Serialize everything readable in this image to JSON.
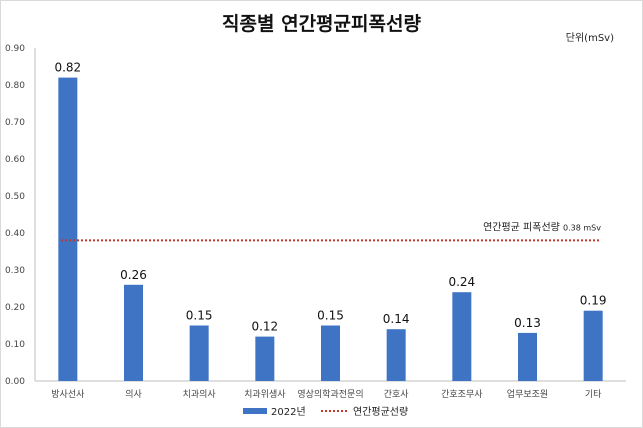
{
  "chart_data": {
    "type": "bar",
    "title": "직종별 연간평균피폭선량",
    "unit_label": "단위(mSv)",
    "categories": [
      "방사선사",
      "의사",
      "치과의사",
      "치과위생사",
      "영상의학과전문의",
      "간호사",
      "간호조무사",
      "업무보조원",
      "기타"
    ],
    "series": [
      {
        "name": "2022년",
        "values": [
          0.82,
          0.26,
          0.15,
          0.12,
          0.15,
          0.14,
          0.24,
          0.13,
          0.19
        ],
        "color": "#3f74c4"
      }
    ],
    "value_labels": [
      "0.82",
      "0.26",
      "0.15",
      "0.12",
      "0.15",
      "0.14",
      "0.24",
      "0.13",
      "0.19"
    ],
    "reference_line": {
      "name": "연간평균선량",
      "value": 0.38,
      "color": "#c0392b",
      "label": "연간평균 피폭선량",
      "label_value": "0.38 mSv"
    },
    "ylim": [
      0,
      0.9
    ],
    "yticks": [
      "0.00",
      "0.10",
      "0.20",
      "0.30",
      "0.40",
      "0.50",
      "0.60",
      "0.70",
      "0.80",
      "0.90"
    ],
    "grid": false,
    "legend": "bottom"
  }
}
